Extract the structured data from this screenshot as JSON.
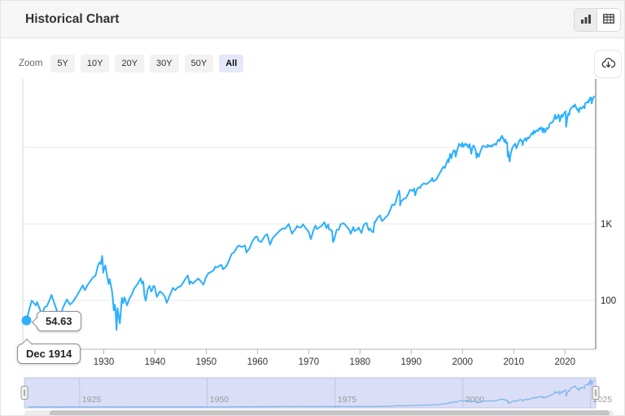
{
  "header": {
    "title": "Historical Chart",
    "view_icons": [
      "bar-chart-icon",
      "table-icon"
    ],
    "active_view": "chart"
  },
  "toolbar": {
    "zoom_label": "Zoom",
    "buttons": [
      "5Y",
      "10Y",
      "20Y",
      "30Y",
      "50Y",
      "All"
    ],
    "active": "All",
    "export_icon": "cloud-download-icon"
  },
  "tooltip": {
    "value": "54.63",
    "date": "Dec 1914"
  },
  "colors": {
    "line": "#2caffe",
    "marker": "#2caffe",
    "gridline": "#e8e8e8",
    "axis": "#b5b5b5",
    "right_axis": "#999999",
    "nav_fill": "#dadef6",
    "nav_border": "#bfc5e8",
    "nav_line": "#7cb5ec",
    "nav_label": "#999999",
    "scroll_thumb": "#c4c4c4",
    "scroll_track": "#ececec",
    "tick_label": "#333333",
    "y_label": "#222222"
  },
  "chart_data": {
    "type": "line",
    "title": "Historical Chart",
    "y_scale": "log",
    "x_range_years": [
      1914.2,
      2026
    ],
    "x_ticks": [
      1930,
      1940,
      1950,
      1960,
      1970,
      1980,
      1990,
      2000,
      2010,
      2020
    ],
    "y_grid_values": [
      100,
      1000,
      10000
    ],
    "y_ticks": [
      {
        "value": 1000,
        "label": "1K"
      },
      {
        "value": 100,
        "label": "100"
      }
    ],
    "first_point": {
      "date": "Dec 1914",
      "value": 54.63
    },
    "navigator": {
      "ticks": [
        1925,
        1950,
        1975,
        2000,
        2025
      ],
      "value_max": 46000
    },
    "points": [
      [
        1914.92,
        54.63
      ],
      [
        1915.5,
        78
      ],
      [
        1915.95,
        99
      ],
      [
        1916.4,
        92
      ],
      [
        1916.75,
        86
      ],
      [
        1917.0,
        95
      ],
      [
        1917.9,
        66
      ],
      [
        1918.5,
        82
      ],
      [
        1918.9,
        84
      ],
      [
        1919.4,
        100
      ],
      [
        1919.8,
        118
      ],
      [
        1920.3,
        94
      ],
      [
        1920.9,
        72
      ],
      [
        1921.6,
        64
      ],
      [
        1922.0,
        79
      ],
      [
        1922.8,
        103
      ],
      [
        1923.4,
        88
      ],
      [
        1924.0,
        96
      ],
      [
        1924.9,
        120
      ],
      [
        1925.9,
        157
      ],
      [
        1926.3,
        136
      ],
      [
        1926.9,
        161
      ],
      [
        1927.9,
        200
      ],
      [
        1928.4,
        211
      ],
      [
        1928.9,
        290
      ],
      [
        1929.2,
        315
      ],
      [
        1929.45,
        298
      ],
      [
        1929.7,
        381
      ],
      [
        1929.82,
        299
      ],
      [
        1929.87,
        230
      ],
      [
        1930.0,
        248
      ],
      [
        1930.3,
        286
      ],
      [
        1930.6,
        218
      ],
      [
        1930.95,
        164
      ],
      [
        1931.15,
        190
      ],
      [
        1931.45,
        151
      ],
      [
        1931.55,
        140
      ],
      [
        1931.75,
        110
      ],
      [
        1931.95,
        74
      ],
      [
        1932.15,
        88
      ],
      [
        1932.3,
        73
      ],
      [
        1932.5,
        41.2
      ],
      [
        1932.7,
        79
      ],
      [
        1932.95,
        60
      ],
      [
        1933.15,
        50
      ],
      [
        1933.55,
        108
      ],
      [
        1933.8,
        92
      ],
      [
        1934.05,
        110
      ],
      [
        1934.55,
        86
      ],
      [
        1934.95,
        104
      ],
      [
        1935.45,
        118
      ],
      [
        1935.95,
        144
      ],
      [
        1936.45,
        158
      ],
      [
        1936.95,
        180
      ],
      [
        1937.2,
        194
      ],
      [
        1937.45,
        166
      ],
      [
        1937.7,
        177
      ],
      [
        1937.95,
        113
      ],
      [
        1938.2,
        99
      ],
      [
        1938.6,
        141
      ],
      [
        1938.95,
        155
      ],
      [
        1939.25,
        131
      ],
      [
        1939.45,
        137
      ],
      [
        1939.7,
        155
      ],
      [
        1939.95,
        150
      ],
      [
        1940.35,
        111
      ],
      [
        1940.95,
        131
      ],
      [
        1941.45,
        124
      ],
      [
        1941.95,
        111
      ],
      [
        1942.3,
        92.9
      ],
      [
        1942.95,
        119
      ],
      [
        1943.5,
        146
      ],
      [
        1943.95,
        136
      ],
      [
        1944.45,
        148
      ],
      [
        1944.95,
        152
      ],
      [
        1945.45,
        169
      ],
      [
        1945.95,
        193
      ],
      [
        1946.4,
        212
      ],
      [
        1946.75,
        163
      ],
      [
        1946.95,
        177
      ],
      [
        1947.4,
        166
      ],
      [
        1947.95,
        181
      ],
      [
        1948.45,
        193
      ],
      [
        1948.95,
        177
      ],
      [
        1949.45,
        161
      ],
      [
        1949.95,
        200
      ],
      [
        1950.45,
        228
      ],
      [
        1950.95,
        235
      ],
      [
        1951.45,
        249
      ],
      [
        1951.75,
        276
      ],
      [
        1951.95,
        269
      ],
      [
        1952.45,
        280
      ],
      [
        1952.95,
        292
      ],
      [
        1953.3,
        255
      ],
      [
        1953.95,
        281
      ],
      [
        1954.45,
        334
      ],
      [
        1954.95,
        404
      ],
      [
        1955.45,
        425
      ],
      [
        1955.95,
        488
      ],
      [
        1956.3,
        521
      ],
      [
        1956.95,
        499
      ],
      [
        1957.55,
        521
      ],
      [
        1957.85,
        420
      ],
      [
        1957.95,
        436
      ],
      [
        1958.45,
        478
      ],
      [
        1958.95,
        584
      ],
      [
        1959.6,
        678
      ],
      [
        1959.95,
        679
      ],
      [
        1960.2,
        601
      ],
      [
        1960.75,
        580
      ],
      [
        1960.95,
        616
      ],
      [
        1961.45,
        697
      ],
      [
        1961.9,
        735
      ],
      [
        1962.45,
        536
      ],
      [
        1962.95,
        652
      ],
      [
        1963.45,
        707
      ],
      [
        1963.95,
        763
      ],
      [
        1964.45,
        831
      ],
      [
        1964.95,
        874
      ],
      [
        1965.45,
        868
      ],
      [
        1965.95,
        969
      ],
      [
        1966.1,
        995
      ],
      [
        1966.75,
        744
      ],
      [
        1966.95,
        786
      ],
      [
        1967.45,
        860
      ],
      [
        1967.7,
        943
      ],
      [
        1967.95,
        905
      ],
      [
        1968.45,
        898
      ],
      [
        1968.9,
        985
      ],
      [
        1969.45,
        870
      ],
      [
        1969.95,
        800
      ],
      [
        1970.4,
        631
      ],
      [
        1970.95,
        839
      ],
      [
        1971.3,
        951
      ],
      [
        1971.6,
        856
      ],
      [
        1971.95,
        890
      ],
      [
        1972.45,
        934
      ],
      [
        1972.95,
        1020
      ],
      [
        1973.05,
        1052
      ],
      [
        1973.45,
        880
      ],
      [
        1973.8,
        987
      ],
      [
        1973.95,
        851
      ],
      [
        1974.2,
        846
      ],
      [
        1974.55,
        802
      ],
      [
        1974.75,
        578
      ],
      [
        1974.95,
        616
      ],
      [
        1975.45,
        832
      ],
      [
        1975.95,
        852
      ],
      [
        1976.2,
        986
      ],
      [
        1976.7,
        1015
      ],
      [
        1976.95,
        1005
      ],
      [
        1977.45,
        916
      ],
      [
        1977.95,
        831
      ],
      [
        1978.2,
        742
      ],
      [
        1978.7,
        907
      ],
      [
        1978.95,
        805
      ],
      [
        1979.45,
        842
      ],
      [
        1979.75,
        897
      ],
      [
        1979.95,
        839
      ],
      [
        1980.3,
        759
      ],
      [
        1980.65,
        937
      ],
      [
        1980.9,
        1000
      ],
      [
        1981.3,
        1024
      ],
      [
        1981.7,
        824
      ],
      [
        1981.95,
        875
      ],
      [
        1982.3,
        795
      ],
      [
        1982.6,
        777
      ],
      [
        1982.85,
        1065
      ],
      [
        1982.95,
        1047
      ],
      [
        1983.45,
        1214
      ],
      [
        1983.9,
        1287
      ],
      [
        1984.3,
        1086
      ],
      [
        1984.55,
        1121
      ],
      [
        1984.95,
        1212
      ],
      [
        1985.45,
        1300
      ],
      [
        1985.95,
        1547
      ],
      [
        1986.3,
        1786
      ],
      [
        1986.7,
        1755
      ],
      [
        1986.95,
        1896
      ],
      [
        1987.3,
        2340
      ],
      [
        1987.65,
        2722
      ],
      [
        1987.8,
        2250
      ],
      [
        1987.82,
        1739
      ],
      [
        1987.95,
        1939
      ],
      [
        1988.3,
        2050
      ],
      [
        1988.6,
        2129
      ],
      [
        1988.95,
        2169
      ],
      [
        1989.45,
        2480
      ],
      [
        1989.75,
        2791
      ],
      [
        1989.95,
        2753
      ],
      [
        1990.3,
        2700
      ],
      [
        1990.55,
        2900
      ],
      [
        1990.78,
        2365
      ],
      [
        1990.95,
        2634
      ],
      [
        1991.2,
        2900
      ],
      [
        1991.45,
        3000
      ],
      [
        1991.7,
        2930
      ],
      [
        1991.95,
        3169
      ],
      [
        1992.45,
        3385
      ],
      [
        1992.95,
        3301
      ],
      [
        1993.45,
        3480
      ],
      [
        1993.95,
        3754
      ],
      [
        1994.1,
        3978
      ],
      [
        1994.3,
        3593
      ],
      [
        1994.7,
        3730
      ],
      [
        1994.95,
        3834
      ],
      [
        1995.45,
        4460
      ],
      [
        1995.95,
        5117
      ],
      [
        1996.3,
        5630
      ],
      [
        1996.55,
        5350
      ],
      [
        1996.95,
        6448
      ],
      [
        1997.2,
        7000
      ],
      [
        1997.3,
        6390
      ],
      [
        1997.6,
        8259
      ],
      [
        1997.82,
        7161
      ],
      [
        1997.95,
        7908
      ],
      [
        1998.3,
        9184
      ],
      [
        1998.55,
        8950
      ],
      [
        1998.67,
        7539
      ],
      [
        1998.95,
        9181
      ],
      [
        1999.35,
        11107
      ],
      [
        1999.6,
        10600
      ],
      [
        1999.8,
        10300
      ],
      [
        1999.95,
        11497
      ],
      [
        2000.05,
        10940
      ],
      [
        2000.2,
        10128
      ],
      [
        2000.35,
        10700
      ],
      [
        2000.6,
        11215
      ],
      [
        2000.8,
        10600
      ],
      [
        2000.95,
        10788
      ],
      [
        2001.15,
        9878
      ],
      [
        2001.4,
        11000
      ],
      [
        2001.72,
        8236
      ],
      [
        2001.95,
        10021
      ],
      [
        2002.2,
        10635
      ],
      [
        2002.55,
        9243
      ],
      [
        2002.75,
        7286
      ],
      [
        2002.95,
        8342
      ],
      [
        2003.2,
        7524
      ],
      [
        2003.55,
        9040
      ],
      [
        2003.95,
        10454
      ],
      [
        2004.3,
        10357
      ],
      [
        2004.55,
        10140
      ],
      [
        2004.8,
        10027
      ],
      [
        2004.95,
        10783
      ],
      [
        2005.3,
        10192
      ],
      [
        2005.6,
        10640
      ],
      [
        2005.8,
        10230
      ],
      [
        2005.95,
        10718
      ],
      [
        2006.35,
        11150
      ],
      [
        2006.55,
        10740
      ],
      [
        2006.95,
        12463
      ],
      [
        2007.15,
        12650
      ],
      [
        2007.25,
        12050
      ],
      [
        2007.55,
        13670
      ],
      [
        2007.75,
        14165
      ],
      [
        2007.85,
        13020
      ],
      [
        2007.95,
        13265
      ],
      [
        2008.2,
        11740
      ],
      [
        2008.4,
        12638
      ],
      [
        2008.55,
        11350
      ],
      [
        2008.72,
        11544
      ],
      [
        2008.8,
        8451
      ],
      [
        2008.87,
        7552
      ],
      [
        2008.95,
        8776
      ],
      [
        2009.2,
        6547
      ],
      [
        2009.45,
        8500
      ],
      [
        2009.7,
        9712
      ],
      [
        2009.95,
        10428
      ],
      [
        2010.3,
        11205
      ],
      [
        2010.5,
        9686
      ],
      [
        2010.7,
        10465
      ],
      [
        2010.95,
        11578
      ],
      [
        2011.3,
        12811
      ],
      [
        2011.6,
        12000
      ],
      [
        2011.75,
        10655
      ],
      [
        2011.85,
        11808
      ],
      [
        2011.95,
        12218
      ],
      [
        2012.3,
        13264
      ],
      [
        2012.45,
        12101
      ],
      [
        2012.75,
        13437
      ],
      [
        2012.95,
        13104
      ],
      [
        2013.35,
        14547
      ],
      [
        2013.6,
        15460
      ],
      [
        2013.75,
        14776
      ],
      [
        2013.95,
        16577
      ],
      [
        2014.1,
        15373
      ],
      [
        2014.45,
        16717
      ],
      [
        2014.75,
        16321
      ],
      [
        2014.95,
        17823
      ],
      [
        2015.15,
        17165
      ],
      [
        2015.4,
        18312
      ],
      [
        2015.68,
        15666
      ],
      [
        2015.8,
        17720
      ],
      [
        2015.95,
        17425
      ],
      [
        2016.12,
        15660
      ],
      [
        2016.45,
        17930
      ],
      [
        2016.55,
        17400
      ],
      [
        2016.85,
        18142
      ],
      [
        2016.95,
        19763
      ],
      [
        2017.2,
        20900
      ],
      [
        2017.45,
        21000
      ],
      [
        2017.75,
        22405
      ],
      [
        2017.95,
        24719
      ],
      [
        2018.07,
        26617
      ],
      [
        2018.27,
        23533
      ],
      [
        2018.45,
        24263
      ],
      [
        2018.75,
        26828
      ],
      [
        2018.9,
        24286
      ],
      [
        2018.98,
        21792
      ],
      [
        2019.3,
        26412
      ],
      [
        2019.45,
        24815
      ],
      [
        2019.55,
        26600
      ],
      [
        2019.6,
        25480
      ],
      [
        2019.75,
        27359
      ],
      [
        2019.95,
        28538
      ],
      [
        2020.12,
        29551
      ],
      [
        2020.23,
        18592
      ],
      [
        2020.45,
        24331
      ],
      [
        2020.65,
        27782
      ],
      [
        2020.85,
        26502
      ],
      [
        2020.95,
        30606
      ],
      [
        2021.3,
        32982
      ],
      [
        2021.6,
        34786
      ],
      [
        2021.75,
        33844
      ],
      [
        2021.95,
        36338
      ],
      [
        2022.2,
        32977
      ],
      [
        2022.45,
        30775
      ],
      [
        2022.5,
        31500
      ],
      [
        2022.73,
        28726
      ],
      [
        2022.85,
        32403
      ],
      [
        2022.95,
        33147
      ],
      [
        2023.2,
        31819
      ],
      [
        2023.55,
        34407
      ],
      [
        2023.65,
        33666
      ],
      [
        2023.83,
        32418
      ],
      [
        2023.95,
        37690
      ],
      [
        2024.3,
        38905
      ],
      [
        2024.45,
        38441
      ],
      [
        2024.6,
        40843
      ],
      [
        2024.63,
        38703
      ],
      [
        2024.8,
        42330
      ],
      [
        2024.92,
        44910
      ],
      [
        2025.0,
        42544
      ],
      [
        2025.1,
        44546
      ],
      [
        2025.22,
        37316
      ],
      [
        2025.4,
        42270
      ],
      [
        2025.55,
        44901
      ],
      [
        2025.65,
        45550
      ],
      [
        2025.72,
        46100
      ]
    ]
  }
}
